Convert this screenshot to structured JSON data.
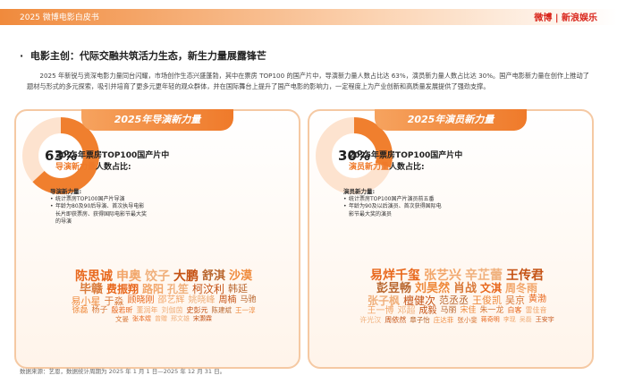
{
  "header": {
    "title": "2025 微博电影白皮书",
    "logo_weibo": "微博",
    "logo_sina": "新浪娱乐"
  },
  "section": {
    "title": "电影主创：代际交融共筑活力生态，新生力量展露锋芒",
    "paragraph": "2025 年新锐与资深电影力量同台闪耀，市场创作生态兴盛蓬勃，其中在票房 TOP100 的国产片中，导演新力量人数占比达 63%，演员新力量人数占比达 30%。国产电影新力量在创作上推动了题材与形式的多元探索，吸引并培育了更多元更年轻的观众群体，并在国际舞台上提升了国产电影的影响力，一定程度上为产业创新和高质量发展提供了强劲支撑。"
  },
  "panels": [
    {
      "title": "2025年导演新力量",
      "headline_1": "2025年票房TOP100国产片中",
      "headline_highlight": "导演新力量",
      "headline_2": "人数占比:",
      "share": {
        "value": 63,
        "label": "63%"
      },
      "definition_title": "导演新力量:",
      "bullets": [
        "统计票房TOP100国产片导演",
        "年龄为80及90后导演、首次执导电影长片即获票房、获得国际电影节最大奖的导演"
      ],
      "names": [
        "陈思诚",
        "申奥",
        "饺子",
        "大鹏",
        "舒淇",
        "沙漠",
        "毕赣",
        "费振翔",
        "路阳",
        "孔笙",
        "柯汶利",
        "韩延",
        "易小星",
        "于淼",
        "顾晓刚",
        "邵艺辉",
        "姚晓峰",
        "周楠",
        "马驰",
        "徐磊",
        "杨子",
        "殷若昕",
        "董润年",
        "刘伽茵",
        "史彭元",
        "陈建斌",
        "王一淳",
        "文晏",
        "张本煜",
        "曾赠",
        "邢文雄",
        "宋灏霖"
      ]
    },
    {
      "title": "2025年演员新力量",
      "headline_1": "2025年票房TOP100国产片中",
      "headline_highlight": "演员新力量",
      "headline_2": "人数占比:",
      "share": {
        "value": 30,
        "label": "30%"
      },
      "definition_title": "演员新力量:",
      "bullets": [
        "统计票房TOP100国产片演员前五番",
        "年龄为90及以后演员、首次获得国际电影节最大奖的演员"
      ],
      "names": [
        "易烊千玺",
        "张艺兴",
        "辛芷蕾",
        "王传君",
        "彭昱畅",
        "刘昊然",
        "肖战",
        "文淇",
        "周冬雨",
        "张子枫",
        "檀健次",
        "范丞丞",
        "王俊凯",
        "吴京",
        "黄渤",
        "王一博",
        "邓超",
        "成毅",
        "马丽",
        "宋佳",
        "朱一龙",
        "白客",
        "雷佳音",
        "许光汉",
        "周依然",
        "章子怡",
        "庄达菲",
        "张小斐",
        "蒋奇明",
        "李现",
        "吴磊",
        "王安宇"
      ]
    }
  ],
  "footer": {
    "source": "数据来源：艺恩，数据统计周期为 2025 年 1 月 1 日—2025 年 12 月 31 日。"
  }
}
